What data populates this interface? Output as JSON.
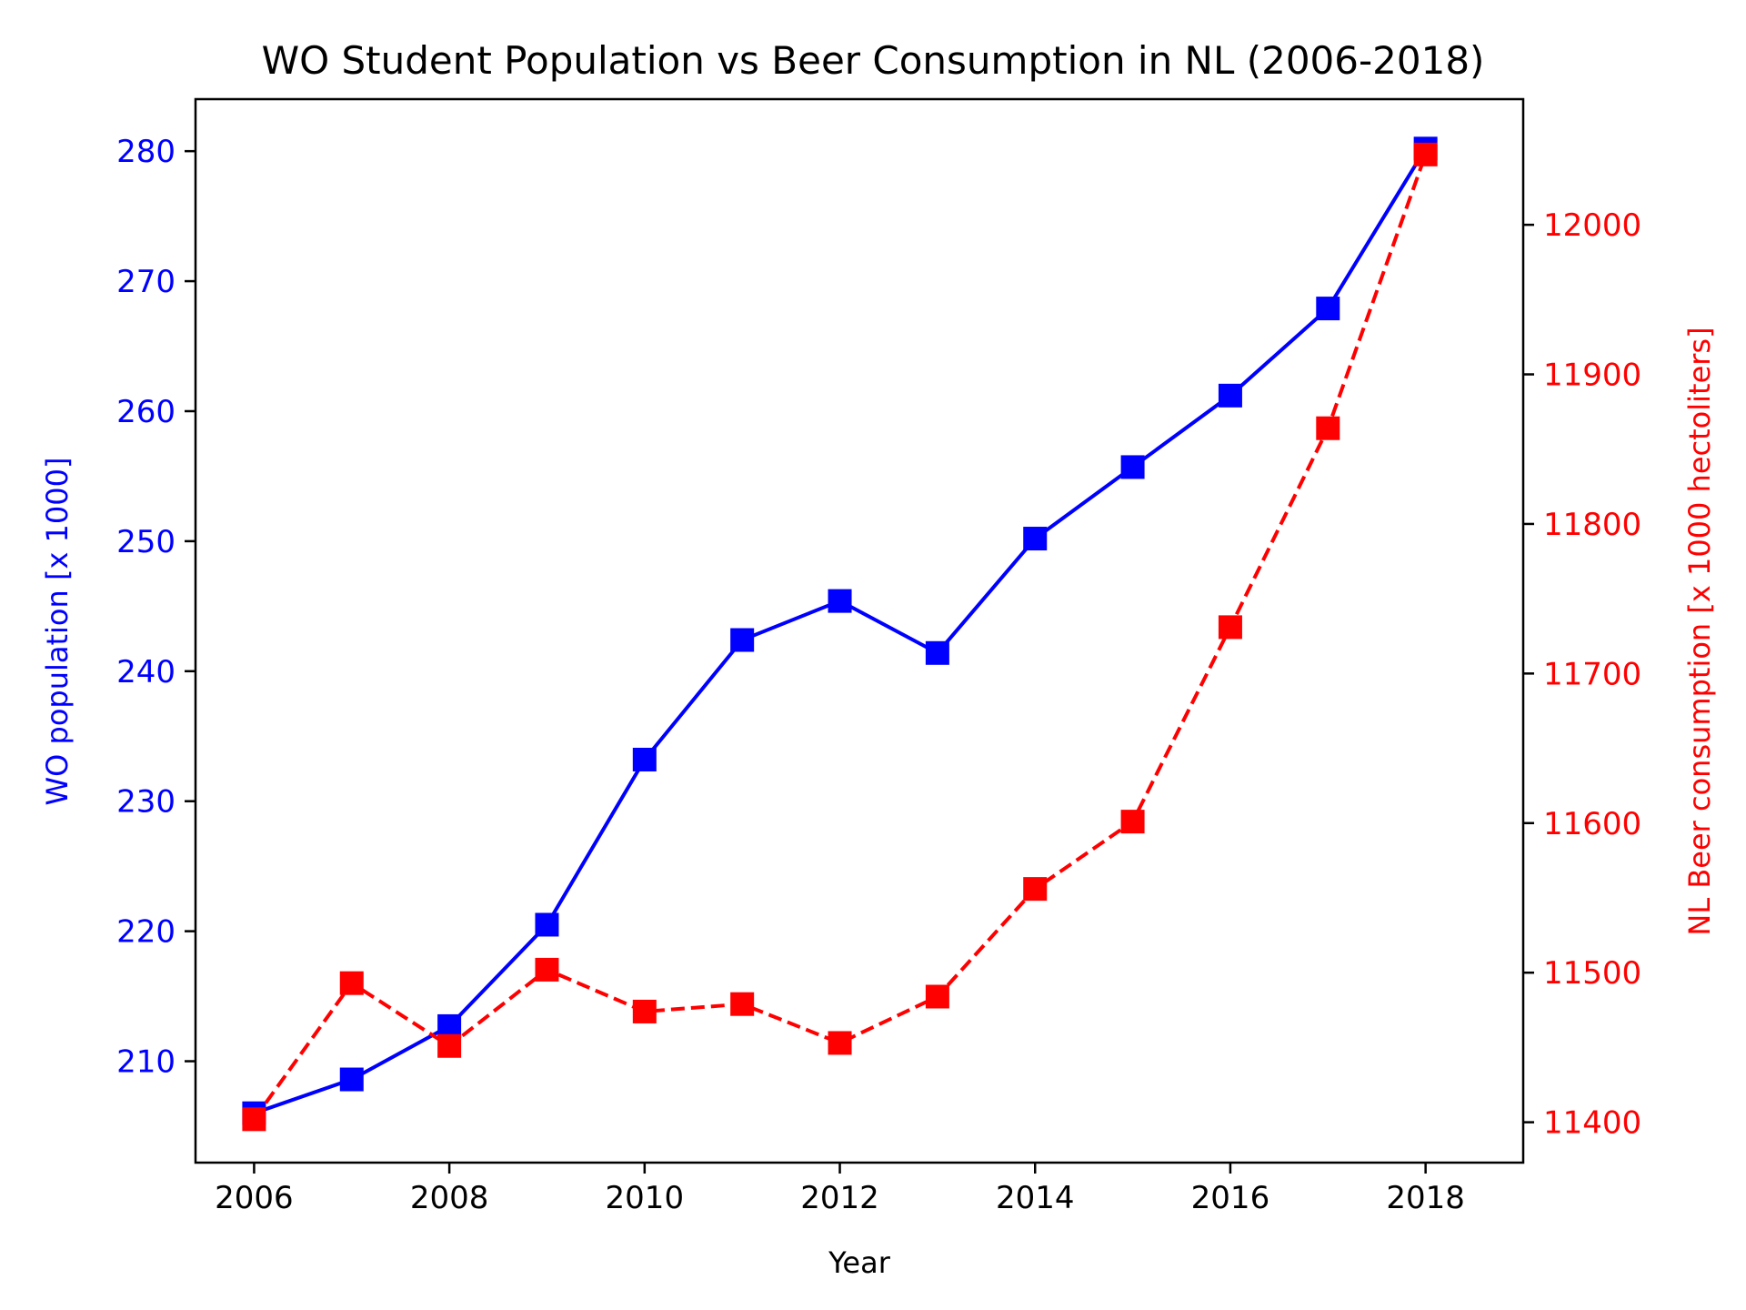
{
  "chart_data": {
    "type": "line",
    "title": "WO Student Population vs Beer Consumption in NL (2006-2018)",
    "xlabel": "Year",
    "ylabel_left": "WO population [x 1000]",
    "ylabel_right": "NL Beer consumption [x 1000 hectoliters]",
    "x": [
      2006,
      2007,
      2008,
      2009,
      2010,
      2011,
      2012,
      2013,
      2014,
      2015,
      2016,
      2017,
      2018
    ],
    "xlim": [
      2005.4,
      2019.0
    ],
    "xticks": [
      2006,
      2008,
      2010,
      2012,
      2014,
      2016,
      2018
    ],
    "series": [
      {
        "axis": "left",
        "color": "#0000ff",
        "line_style": "solid",
        "marker": "square",
        "values": [
          206.0,
          208.6,
          212.7,
          220.5,
          233.2,
          242.4,
          245.4,
          241.4,
          250.2,
          255.7,
          261.2,
          267.9,
          280.2
        ]
      },
      {
        "axis": "right",
        "color": "#ff0000",
        "line_style": "dashed",
        "marker": "square",
        "values": [
          11402,
          11493,
          11451,
          11502,
          11474,
          11479,
          11453,
          11484,
          11556,
          11601,
          11731,
          11864,
          12047
        ]
      }
    ],
    "ylim_left": [
      202.2,
      284.0
    ],
    "yticks_left": [
      210,
      220,
      230,
      240,
      250,
      260,
      270,
      280
    ],
    "ylim_right": [
      11373,
      12084
    ],
    "yticks_right": [
      11400,
      11500,
      11600,
      11700,
      11800,
      11900,
      12000
    ],
    "grid": false,
    "colors": {
      "left_axis": "#0000ff",
      "right_axis": "#ff0000",
      "frame": "#000000"
    }
  }
}
